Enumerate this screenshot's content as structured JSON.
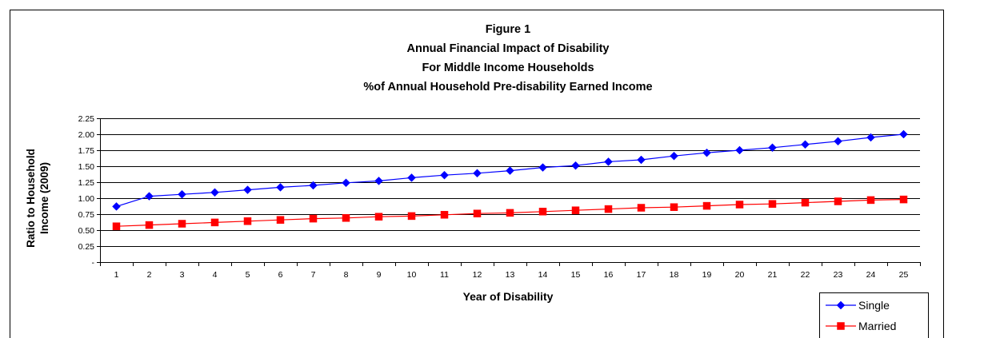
{
  "chart_data": {
    "type": "line",
    "title_lines": [
      "Figure 1",
      "Annual Financial Impact of Disability",
      "For Middle Income Households",
      "%of Annual Household Pre-disability Earned Income"
    ],
    "xlabel": "Year of Disability",
    "ylabel_lines": [
      "Ratio to Household",
      "Income (2009)"
    ],
    "x": [
      1,
      2,
      3,
      4,
      5,
      6,
      7,
      8,
      9,
      10,
      11,
      12,
      13,
      14,
      15,
      16,
      17,
      18,
      19,
      20,
      21,
      22,
      23,
      24,
      25
    ],
    "ylim": [
      0,
      2.25
    ],
    "ytick_values": [
      0,
      0.25,
      0.5,
      0.75,
      1.0,
      1.25,
      1.5,
      1.75,
      2.0,
      2.25
    ],
    "ytick_labels": [
      "-",
      "0.25",
      "0.50",
      "0.75",
      "1.00",
      "1.25",
      "1.50",
      "1.75",
      "2.00",
      "2.25"
    ],
    "grid": true,
    "legend_position": "bottom-right",
    "series": [
      {
        "name": "Single",
        "color": "#0000ff",
        "marker": "diamond",
        "values": [
          0.87,
          1.03,
          1.06,
          1.09,
          1.13,
          1.17,
          1.2,
          1.24,
          1.27,
          1.32,
          1.36,
          1.39,
          1.43,
          1.48,
          1.51,
          1.57,
          1.6,
          1.66,
          1.71,
          1.75,
          1.79,
          1.84,
          1.89,
          1.95,
          2.0
        ]
      },
      {
        "name": "Married",
        "color": "#ff0000",
        "marker": "square",
        "values": [
          0.56,
          0.58,
          0.6,
          0.62,
          0.64,
          0.66,
          0.68,
          0.69,
          0.71,
          0.72,
          0.74,
          0.76,
          0.77,
          0.79,
          0.81,
          0.83,
          0.85,
          0.86,
          0.88,
          0.9,
          0.91,
          0.93,
          0.95,
          0.97,
          0.98
        ]
      }
    ]
  }
}
